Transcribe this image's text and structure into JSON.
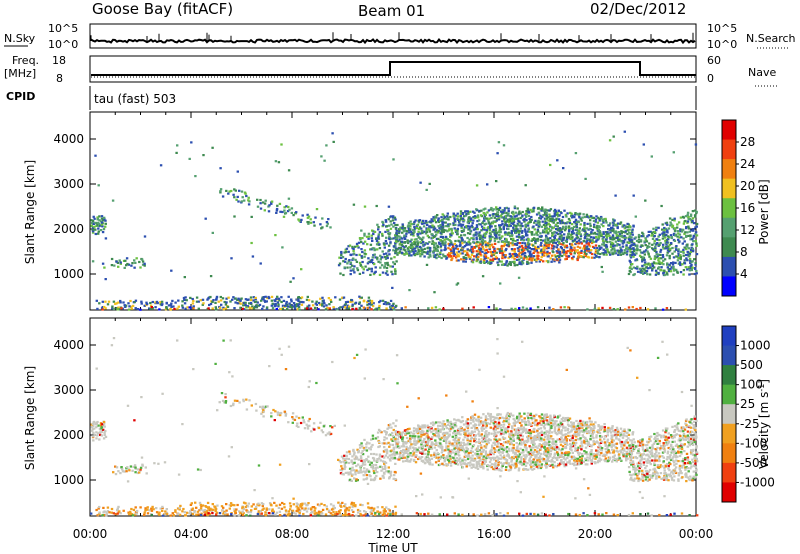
{
  "header": {
    "station": "Goose Bay (fitACF)",
    "beam": "Beam 01",
    "date": "02/Dec/2012"
  },
  "strip1": {
    "left_label": "N.Sky",
    "right_label": "N.Search",
    "left_ticks": [
      "10^5",
      "10^0"
    ],
    "right_ticks": [
      "10^5",
      "10^0"
    ]
  },
  "strip2": {
    "left_label_1": "Freq.",
    "left_label_2": "[MHz]",
    "right_label": "Nave",
    "left_ticks": [
      "18",
      "8"
    ],
    "right_ticks": [
      "60",
      "0"
    ]
  },
  "strip3": {
    "left_label": "CPID",
    "text": "tau (fast) 503"
  },
  "colors": {
    "power": [
      "#0000ff",
      "#2c4fb0",
      "#3e8a50",
      "#55a070",
      "#6cc040",
      "#f0c020",
      "#f08010",
      "#f04010",
      "#e00000"
    ],
    "velocity": [
      "#e00000",
      "#f04010",
      "#f08010",
      "#f0a020",
      "#c8c8c0",
      "#50b040",
      "#308040",
      "#2c4fb0",
      "#2040c0"
    ]
  },
  "chart_data": [
    {
      "type": "heatmap",
      "ylabel": "Slant Range [km]",
      "yticks": [
        "1000",
        "2000",
        "3000",
        "4000"
      ],
      "ylim": [
        200,
        4600
      ],
      "xlim": [
        "00:00",
        "24:00"
      ],
      "colorbar": {
        "label": "Power [dB]",
        "ticks": [
          "4",
          "8",
          "12",
          "16",
          "20",
          "24",
          "28"
        ],
        "range": [
          0,
          32
        ]
      },
      "features": [
        {
          "region": "near-range band",
          "t_start": "01:00",
          "t_end": "12:00",
          "range_km": [
            250,
            550
          ],
          "value": "4-12"
        },
        {
          "region": "afternoon arc",
          "t_start": "12:00",
          "t_end": "22:00",
          "range_km": [
            1200,
            2500
          ],
          "value": "8-24"
        },
        {
          "region": "morning arc",
          "t_start": "05:00",
          "t_end": "09:30",
          "range_km": [
            2100,
            3100
          ],
          "value": "4-8"
        }
      ]
    },
    {
      "type": "heatmap",
      "ylabel": "Slant Range [km]",
      "xlabel": "Time UT",
      "xticks": [
        "00:00",
        "04:00",
        "08:00",
        "12:00",
        "16:00",
        "20:00",
        "00:00"
      ],
      "yticks": [
        "1000",
        "2000",
        "3000",
        "4000"
      ],
      "ylim": [
        200,
        4600
      ],
      "colorbar": {
        "label": "Velocity [m s^-1]",
        "ticks": [
          "1000",
          "500",
          "100",
          "25",
          "-25",
          "-100",
          "-500",
          "-1000"
        ]
      },
      "features": [
        {
          "region": "near-range band",
          "t_start": "01:00",
          "t_end": "12:00",
          "range_km": [
            250,
            550
          ],
          "value": "-100 to -500"
        },
        {
          "region": "afternoon arc",
          "t_start": "12:00",
          "t_end": "22:00",
          "range_km": [
            1200,
            2500
          ],
          "value": "-25 to 25"
        }
      ]
    }
  ]
}
